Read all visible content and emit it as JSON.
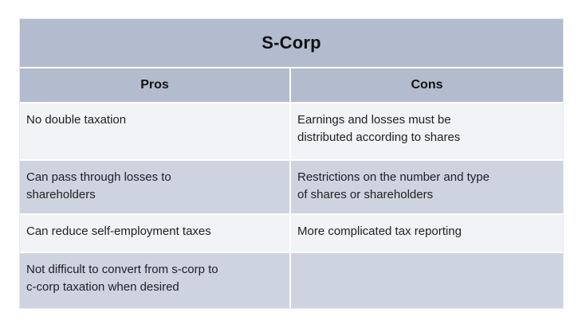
{
  "table": {
    "title": "S-Corp",
    "columns": [
      {
        "label": "Pros"
      },
      {
        "label": "Cons"
      }
    ],
    "rows": [
      {
        "pros": "No double taxation",
        "cons": "Earnings and losses must be\ndistributed according to shares"
      },
      {
        "pros": "Can pass through losses to\nshareholders",
        "cons": "Restrictions on the number and type\nof shares or shareholders"
      },
      {
        "pros": "Can reduce self-employment taxes",
        "cons": "More complicated tax reporting"
      },
      {
        "pros": "Not difficult to convert from s-corp to\nc-corp taxation when desired",
        "cons": ""
      }
    ],
    "colors": {
      "header_band": "#b3bbce",
      "row_dark": "#ced3e0",
      "row_light": "#f2f3f7",
      "divider": "#ffffff",
      "text": "#1d1f24"
    }
  }
}
